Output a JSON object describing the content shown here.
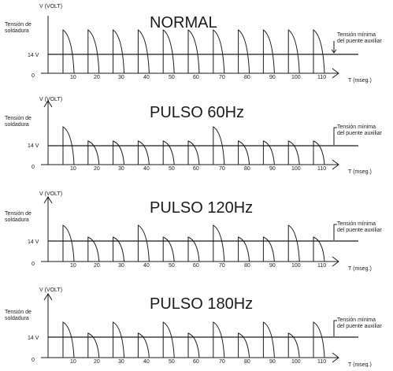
{
  "labels": {
    "y_axis": "V (VOLT)",
    "y_side": [
      "Tensión de",
      "soldadura"
    ],
    "ref_level": "14 V",
    "origin": "0",
    "x_axis": "T (mseg.)",
    "annotation": [
      "Tensión mínima",
      "del puente auxiliar"
    ]
  },
  "ticks": [
    "10",
    "20",
    "30",
    "40",
    "50",
    "60",
    "70",
    "80",
    "90",
    "100",
    "110"
  ],
  "panels": [
    {
      "title": "NORMAL",
      "pulses": [
        1,
        1,
        1,
        1,
        1,
        1,
        1,
        1,
        1,
        1,
        1
      ]
    },
    {
      "title": "PULSO 60Hz",
      "pulses": [
        1,
        0,
        0,
        0,
        0,
        0,
        1,
        0,
        0,
        0,
        0
      ]
    },
    {
      "title": "PULSO 120Hz",
      "pulses": [
        1,
        0,
        0,
        1,
        0,
        0,
        1,
        0,
        0,
        1,
        0
      ]
    },
    {
      "title": "PULSO 180Hz",
      "pulses": [
        1,
        0,
        1,
        0,
        1,
        0,
        1,
        0,
        1,
        0,
        1
      ]
    }
  ]
}
